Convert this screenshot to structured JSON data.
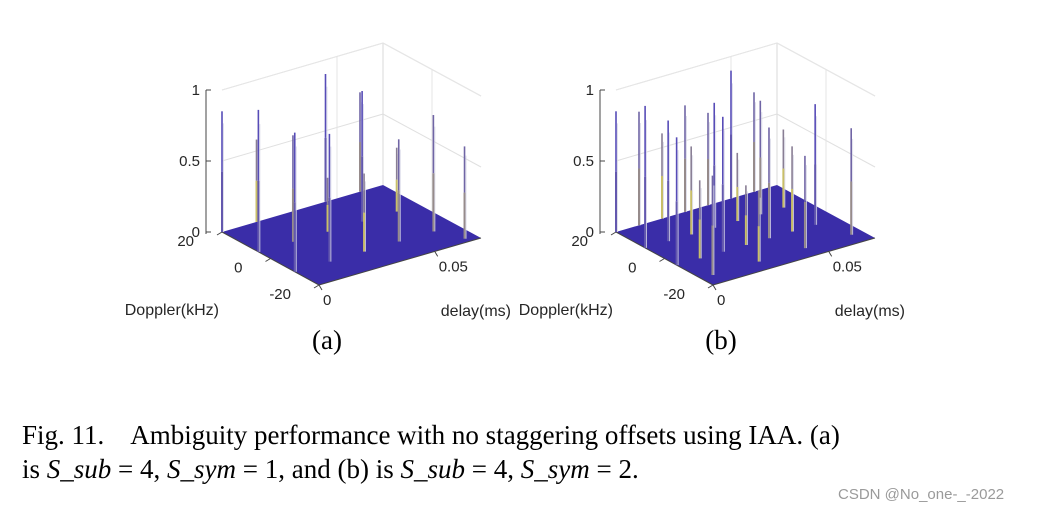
{
  "chart_data": [
    {
      "type": "3d-stem",
      "panel_label": "(a)",
      "xlabel": "delay(ms)",
      "ylabel": "Doppler(kHz)",
      "x_ticks": [
        "0",
        "0.05"
      ],
      "y_ticks": [
        "20",
        "0",
        "-20"
      ],
      "z_ticks": [
        "0",
        "0.5",
        "1"
      ],
      "xlim": [
        0,
        0.07
      ],
      "ylim": [
        -20,
        20
      ],
      "zlim": [
        0,
        1
      ],
      "grid": true,
      "floor_color": "#3a2da8",
      "colors": {
        "high": "#4a3fc0",
        "low": "#f2e84a"
      },
      "stems": [
        {
          "x": 0.0,
          "y": 20,
          "z": 0.85
        },
        {
          "x": 0.015,
          "y": 20,
          "z": 0.58
        },
        {
          "x": 0.0,
          "y": 5,
          "z": 1.0
        },
        {
          "x": 0.015,
          "y": 5,
          "z": 0.75
        },
        {
          "x": 0.03,
          "y": 5,
          "z": 0.38
        },
        {
          "x": 0.0,
          "y": -10,
          "z": 0.98
        },
        {
          "x": 0.015,
          "y": -10,
          "z": 0.9
        },
        {
          "x": 0.03,
          "y": -10,
          "z": 0.55
        },
        {
          "x": 0.045,
          "y": 20,
          "z": 0.9
        },
        {
          "x": 0.06,
          "y": 20,
          "z": 0.7
        },
        {
          "x": 0.045,
          "y": 5,
          "z": 0.92
        },
        {
          "x": 0.06,
          "y": 5,
          "z": 0.45
        },
        {
          "x": 0.045,
          "y": -10,
          "z": 0.72
        },
        {
          "x": 0.06,
          "y": -10,
          "z": 0.82
        },
        {
          "x": 0.065,
          "y": -18,
          "z": 0.65
        }
      ]
    },
    {
      "type": "3d-stem",
      "panel_label": "(b)",
      "xlabel": "delay(ms)",
      "ylabel": "Doppler(kHz)",
      "x_ticks": [
        "0",
        "0.05"
      ],
      "y_ticks": [
        "20",
        "0",
        "-20"
      ],
      "z_ticks": [
        "0",
        "0.5",
        "1"
      ],
      "xlim": [
        0,
        0.07
      ],
      "ylim": [
        -20,
        20
      ],
      "zlim": [
        0,
        1
      ],
      "grid": true,
      "floor_color": "#3a2da8",
      "colors": {
        "high": "#4a3fc0",
        "low": "#f2e84a"
      },
      "stems": [
        {
          "x": 0.0,
          "y": 20,
          "z": 0.85
        },
        {
          "x": 0.01,
          "y": 20,
          "z": 0.8
        },
        {
          "x": 0.02,
          "y": 20,
          "z": 0.6
        },
        {
          "x": 0.03,
          "y": 20,
          "z": 0.75
        },
        {
          "x": 0.04,
          "y": 20,
          "z": 0.65
        },
        {
          "x": 0.05,
          "y": 20,
          "z": 0.9
        },
        {
          "x": 0.06,
          "y": 20,
          "z": 0.7
        },
        {
          "x": 0.0,
          "y": 8,
          "z": 1.0
        },
        {
          "x": 0.01,
          "y": 8,
          "z": 0.85
        },
        {
          "x": 0.02,
          "y": 8,
          "z": 0.62
        },
        {
          "x": 0.03,
          "y": 8,
          "z": 0.88
        },
        {
          "x": 0.04,
          "y": 8,
          "z": 0.48
        },
        {
          "x": 0.05,
          "y": 8,
          "z": 0.8
        },
        {
          "x": 0.06,
          "y": 8,
          "z": 0.55
        },
        {
          "x": 0.0,
          "y": -5,
          "z": 0.9
        },
        {
          "x": 0.01,
          "y": -5,
          "z": 0.55
        },
        {
          "x": 0.02,
          "y": -5,
          "z": 0.95
        },
        {
          "x": 0.03,
          "y": -5,
          "z": 0.42
        },
        {
          "x": 0.04,
          "y": -5,
          "z": 0.78
        },
        {
          "x": 0.05,
          "y": -5,
          "z": 0.6
        },
        {
          "x": 0.06,
          "y": -5,
          "z": 0.85
        },
        {
          "x": 0.005,
          "y": -15,
          "z": 0.7
        },
        {
          "x": 0.025,
          "y": -15,
          "z": 0.5
        },
        {
          "x": 0.045,
          "y": -15,
          "z": 0.65
        },
        {
          "x": 0.065,
          "y": -15,
          "z": 0.75
        }
      ]
    }
  ],
  "caption": {
    "lead": "Fig. 11.",
    "body1": "Ambiguity performance with no staggering offsets using IAA. (a)",
    "is1": "is ",
    "eqa_s": "S_sub",
    "eqa_v": " = 4, ",
    "eqa2_s": "S_sym",
    "eqa2_v": " = 1, and (b) is ",
    "eqb_s": "S_sub",
    "eqb_v": " = 4, ",
    "eqb2_s": "S_sym",
    "eqb2_v": " = 2."
  },
  "watermark": "CSDN @No_one-_-2022"
}
